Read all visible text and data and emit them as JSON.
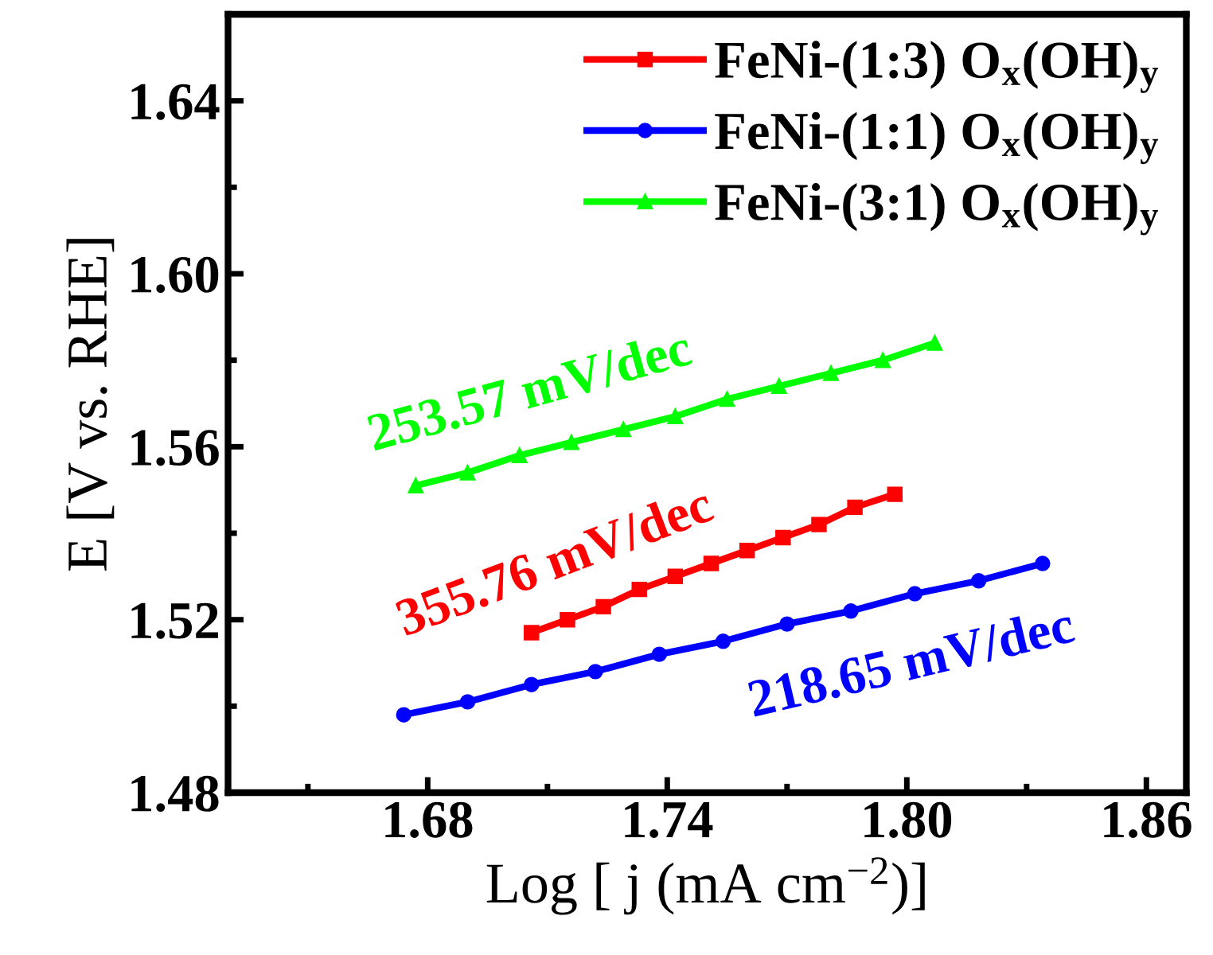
{
  "chart_data": {
    "type": "line",
    "xlabel": "Log [ j (mA cm$^{−2}$)]",
    "ylabel": "E [V vs. RHE]",
    "xlim": [
      1.63,
      1.87
    ],
    "xticks": [
      1.68,
      1.74,
      {
        "value": 1.8,
        "label": "1.80"
      },
      1.86
    ],
    "ylim": [
      1.48,
      1.66
    ],
    "yticks": [
      1.48,
      1.52,
      1.56,
      {
        "value": 1.6,
        "label": "1.60"
      },
      1.64
    ],
    "grid": false,
    "legend": "top right",
    "line_style": "solid",
    "series": [
      {
        "name": "FeNi-(1:3) O$_{x}$(OH)$_{y}$",
        "color": "#ff0000",
        "marker": "square",
        "x": [
          1.706,
          1.715,
          1.724,
          1.733,
          1.742,
          1.751,
          1.76,
          1.769,
          1.778,
          1.787,
          1.797
        ],
        "values": [
          1.517,
          1.52,
          1.523,
          1.527,
          1.53,
          1.533,
          1.536,
          1.539,
          1.542,
          1.546,
          1.549
        ]
      },
      {
        "name": "FeNi-(1:1) O$_{x}$(OH)$_{y}$",
        "color": "#0000ff",
        "marker": "circle",
        "x": [
          1.674,
          1.69,
          1.706,
          1.722,
          1.738,
          1.754,
          1.77,
          1.786,
          1.802,
          1.818,
          1.834
        ],
        "values": [
          1.498,
          1.501,
          1.505,
          1.508,
          1.512,
          1.515,
          1.519,
          1.522,
          1.526,
          1.529,
          1.533
        ]
      },
      {
        "name": "FeNi-(3:1) O$_{x}$(OH)$_{y}$",
        "color": "#00ff00",
        "marker": "triangle",
        "x": [
          1.677,
          1.69,
          1.703,
          1.716,
          1.729,
          1.742,
          1.755,
          1.768,
          1.781,
          1.794,
          1.807
        ],
        "values": [
          1.551,
          1.554,
          1.558,
          1.561,
          1.564,
          1.567,
          1.571,
          1.574,
          1.577,
          1.58,
          1.584
        ]
      }
    ],
    "annotations": [
      "355.76 mV/dec",
      "218.65 mV/dec",
      "253.57 mV/dec"
    ]
  }
}
